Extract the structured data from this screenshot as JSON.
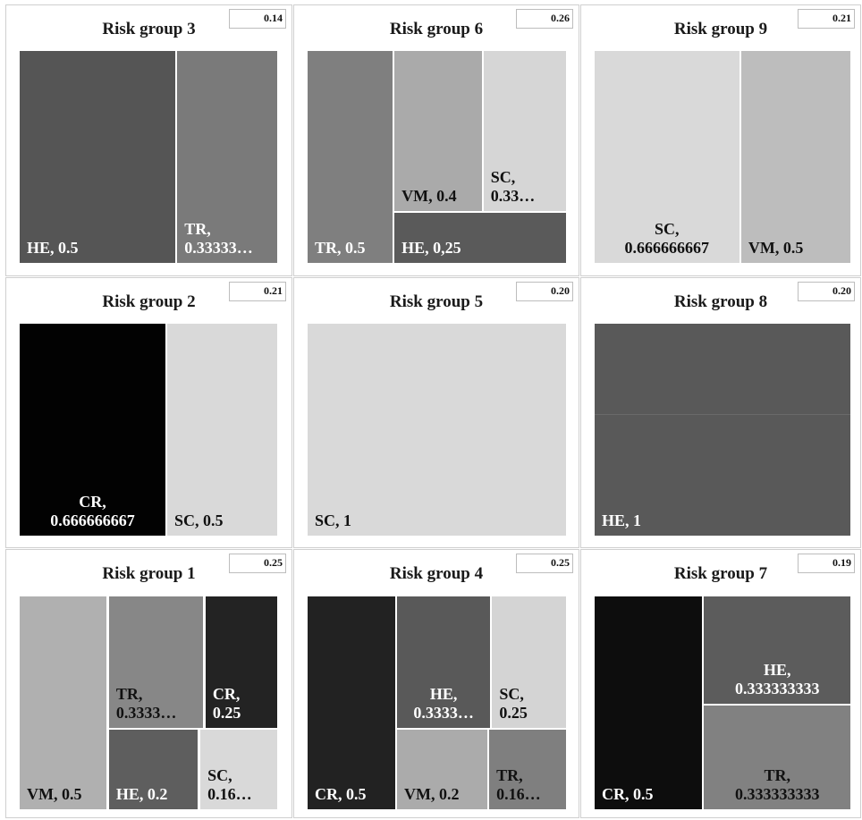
{
  "chart_data": [
    {
      "type": "treemap",
      "title": "Risk group 3",
      "value_box": "0.14",
      "tiles": [
        {
          "label": "HE, 0.5",
          "name": "HE",
          "value": 0.5,
          "color": "#555555",
          "text": "light"
        },
        {
          "label": "TR,\n0.33333…",
          "name": "TR",
          "value": 0.3333333,
          "color": "#7a7a7a",
          "text": "light"
        }
      ]
    },
    {
      "type": "treemap",
      "title": "Risk group 6",
      "value_box": "0.26",
      "tiles": [
        {
          "label": "TR, 0.5",
          "name": "TR",
          "value": 0.5,
          "color": "#7f7f7f",
          "text": "light"
        },
        {
          "label": "VM, 0.4",
          "name": "VM",
          "value": 0.4,
          "color": "#aaaaaa",
          "text": "dark"
        },
        {
          "label": "SC,\n0.33…",
          "name": "SC",
          "value": 0.3333333,
          "color": "#d6d6d6",
          "text": "dark"
        },
        {
          "label": "HE, 0,25",
          "name": "HE",
          "value": 0.25,
          "color": "#5a5a5a",
          "text": "light"
        }
      ]
    },
    {
      "type": "treemap",
      "title": "Risk group 9",
      "value_box": "0.21",
      "tiles": [
        {
          "label": "SC,\n0.666666667",
          "name": "SC",
          "value": 0.666666667,
          "color": "#d9d9d9",
          "text": "dark"
        },
        {
          "label": "VM, 0.5",
          "name": "VM",
          "value": 0.5,
          "color": "#bdbdbd",
          "text": "dark"
        }
      ]
    },
    {
      "type": "treemap",
      "title": "Risk group 2",
      "value_box": "0.21",
      "tiles": [
        {
          "label": "CR,\n0.666666667",
          "name": "CR",
          "value": 0.666666667,
          "color": "#020202",
          "text": "light"
        },
        {
          "label": "SC, 0.5",
          "name": "SC",
          "value": 0.5,
          "color": "#d9d9d9",
          "text": "dark"
        }
      ]
    },
    {
      "type": "treemap",
      "title": "Risk group 5",
      "value_box": "0.20",
      "tiles": [
        {
          "label": "SC, 1",
          "name": "SC",
          "value": 1,
          "color": "#d9d9d9",
          "text": "dark"
        }
      ]
    },
    {
      "type": "treemap",
      "title": "Risk group 8",
      "value_box": "0.20",
      "tiles": [
        {
          "label": "HE, 1",
          "name": "HE",
          "value": 1,
          "color": "#595959",
          "text": "light"
        }
      ]
    },
    {
      "type": "treemap",
      "title": "Risk group 1",
      "value_box": "0.25",
      "tiles": [
        {
          "label": "VM, 0.5",
          "name": "VM",
          "value": 0.5,
          "color": "#b0b0b0",
          "text": "dark"
        },
        {
          "label": "TR,\n0.3333…",
          "name": "TR",
          "value": 0.3333333,
          "color": "#878787",
          "text": "dark"
        },
        {
          "label": "CR,\n0.25",
          "name": "CR",
          "value": 0.25,
          "color": "#232323",
          "text": "light"
        },
        {
          "label": "HE, 0.2",
          "name": "HE",
          "value": 0.2,
          "color": "#5e5e5e",
          "text": "light"
        },
        {
          "label": "SC,\n0.16…",
          "name": "SC",
          "value": 0.1666667,
          "color": "#d9d9d9",
          "text": "dark"
        }
      ]
    },
    {
      "type": "treemap",
      "title": "Risk group 4",
      "value_box": "0.25",
      "tiles": [
        {
          "label": "CR, 0.5",
          "name": "CR",
          "value": 0.5,
          "color": "#222222",
          "text": "light"
        },
        {
          "label": "HE,\n0.3333…",
          "name": "HE",
          "value": 0.3333333,
          "color": "#595959",
          "text": "light"
        },
        {
          "label": "SC,\n0.25",
          "name": "SC",
          "value": 0.25,
          "color": "#d4d4d4",
          "text": "dark"
        },
        {
          "label": "VM, 0.2",
          "name": "VM",
          "value": 0.2,
          "color": "#ababab",
          "text": "dark"
        },
        {
          "label": "TR,\n0.16…",
          "name": "TR",
          "value": 0.1666667,
          "color": "#7f7f7f",
          "text": "dark"
        }
      ]
    },
    {
      "type": "treemap",
      "title": "Risk group 7",
      "value_box": "0.19",
      "tiles": [
        {
          "label": "CR, 0.5",
          "name": "CR",
          "value": 0.5,
          "color": "#0d0d0d",
          "text": "light"
        },
        {
          "label": "HE,\n0.333333333",
          "name": "HE",
          "value": 0.333333333,
          "color": "#5c5c5c",
          "text": "light"
        },
        {
          "label": "TR,\n0.333333333",
          "name": "TR",
          "value": 0.333333333,
          "color": "#818181",
          "text": "dark"
        }
      ]
    }
  ]
}
